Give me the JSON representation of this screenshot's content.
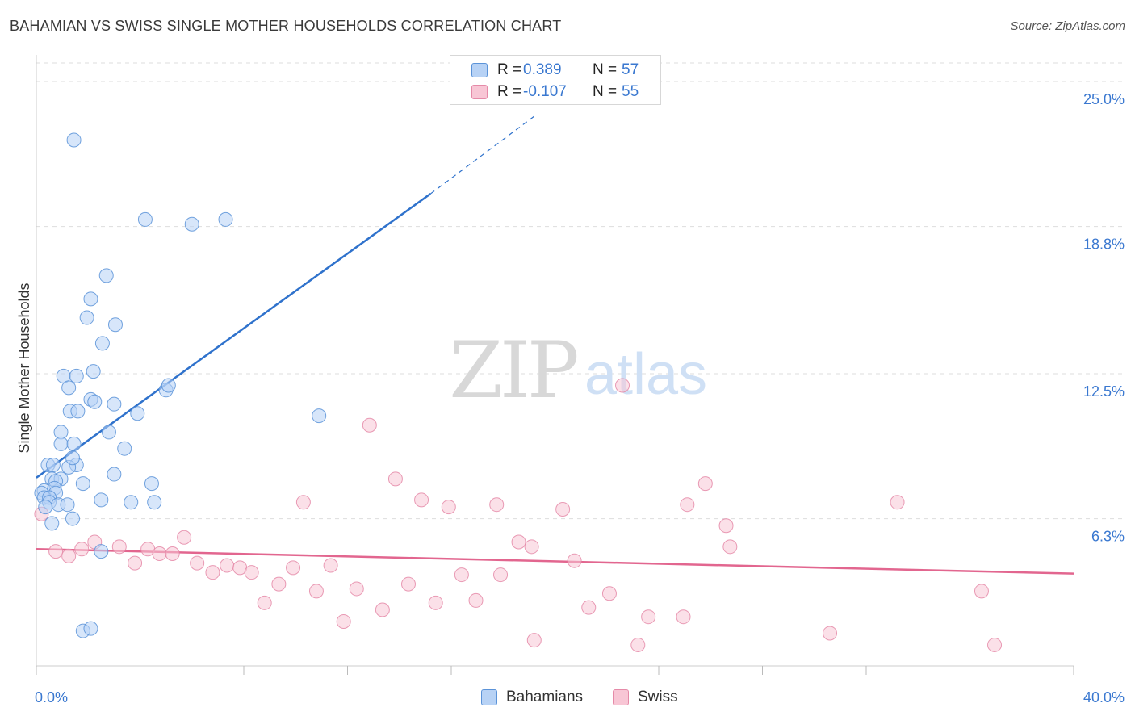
{
  "title": "BAHAMIAN VS SWISS SINGLE MOTHER HOUSEHOLDS CORRELATION CHART",
  "source": "Source: ZipAtlas.com",
  "watermark": {
    "zip": "ZIP",
    "atlas": "atlas"
  },
  "legend": {
    "r_label": "R =",
    "n_label": "N =",
    "bahamians": {
      "r": "0.389",
      "n": "57"
    },
    "swiss": {
      "r": "-0.107",
      "n": "55"
    }
  },
  "bottom_legend": {
    "bahamians": "Bahamians",
    "swiss": "Swiss"
  },
  "colors": {
    "bahamians_fill": "#b7d2f5",
    "bahamians_stroke": "#5b93d8",
    "bahamians_line": "#2f72cc",
    "swiss_fill": "#f8c6d5",
    "swiss_stroke": "#e58aa8",
    "swiss_line": "#e2668f",
    "axis_text": "#3a78d0",
    "grid": "#dddddd"
  },
  "chart_data": {
    "type": "scatter",
    "title": "BAHAMIAN VS SWISS SINGLE MOTHER HOUSEHOLDS CORRELATION CHART",
    "ylabel": "Single Mother Households",
    "xlabel": "",
    "xlim": [
      0,
      40
    ],
    "ylim": [
      0,
      25.9
    ],
    "x_tick_labels": [
      "0.0%",
      "40.0%"
    ],
    "y_ticks": [
      6.3,
      12.5,
      18.8,
      25.0
    ],
    "y_tick_labels": [
      "6.3%",
      "12.5%",
      "18.8%",
      "25.0%"
    ],
    "grid": true,
    "series": [
      {
        "name": "Bahamians",
        "r": 0.389,
        "n": 57,
        "points": [
          [
            1.45,
            22.5
          ],
          [
            4.2,
            19.1
          ],
          [
            6.0,
            18.9
          ],
          [
            7.3,
            19.1
          ],
          [
            2.7,
            16.7
          ],
          [
            2.1,
            15.7
          ],
          [
            1.95,
            14.9
          ],
          [
            3.05,
            14.6
          ],
          [
            2.55,
            13.8
          ],
          [
            1.05,
            12.4
          ],
          [
            1.55,
            12.4
          ],
          [
            2.2,
            12.6
          ],
          [
            1.25,
            11.9
          ],
          [
            5.0,
            11.8
          ],
          [
            5.1,
            12.0
          ],
          [
            2.1,
            11.4
          ],
          [
            2.25,
            11.3
          ],
          [
            3.0,
            11.2
          ],
          [
            1.3,
            10.9
          ],
          [
            1.6,
            10.9
          ],
          [
            3.9,
            10.8
          ],
          [
            10.9,
            10.7
          ],
          [
            0.95,
            10.0
          ],
          [
            2.8,
            10.0
          ],
          [
            0.95,
            9.5
          ],
          [
            1.45,
            9.5
          ],
          [
            3.4,
            9.3
          ],
          [
            0.45,
            8.6
          ],
          [
            0.65,
            8.6
          ],
          [
            1.55,
            8.6
          ],
          [
            1.25,
            8.5
          ],
          [
            3.0,
            8.2
          ],
          [
            1.4,
            8.9
          ],
          [
            0.6,
            8.0
          ],
          [
            0.95,
            8.0
          ],
          [
            0.75,
            7.9
          ],
          [
            1.8,
            7.8
          ],
          [
            4.45,
            7.8
          ],
          [
            0.3,
            7.5
          ],
          [
            0.7,
            7.6
          ],
          [
            0.75,
            7.4
          ],
          [
            0.2,
            7.4
          ],
          [
            0.3,
            7.2
          ],
          [
            0.5,
            7.2
          ],
          [
            0.5,
            7.0
          ],
          [
            0.85,
            6.9
          ],
          [
            1.2,
            6.9
          ],
          [
            2.5,
            7.1
          ],
          [
            3.65,
            7.0
          ],
          [
            4.55,
            7.0
          ],
          [
            0.35,
            6.8
          ],
          [
            0.6,
            6.1
          ],
          [
            1.4,
            6.3
          ],
          [
            2.5,
            4.9
          ],
          [
            1.8,
            1.5
          ],
          [
            2.1,
            1.6
          ]
        ],
        "trend": {
          "x0": 0.0,
          "y0": 8.05,
          "x1": 15.2,
          "y1": 20.2,
          "dashed_to_x": 19.3,
          "dashed_to_y": 23.6
        }
      },
      {
        "name": "Swiss",
        "r": -0.107,
        "n": 55,
        "points": [
          [
            0.2,
            6.5
          ],
          [
            0.75,
            4.9
          ],
          [
            1.25,
            4.7
          ],
          [
            1.75,
            5.0
          ],
          [
            2.25,
            5.3
          ],
          [
            3.2,
            5.1
          ],
          [
            3.8,
            4.4
          ],
          [
            4.3,
            5.0
          ],
          [
            4.75,
            4.8
          ],
          [
            5.25,
            4.8
          ],
          [
            5.7,
            5.5
          ],
          [
            6.2,
            4.4
          ],
          [
            6.8,
            4.0
          ],
          [
            7.35,
            4.3
          ],
          [
            7.85,
            4.2
          ],
          [
            8.3,
            4.0
          ],
          [
            8.8,
            2.7
          ],
          [
            9.35,
            3.5
          ],
          [
            9.9,
            4.2
          ],
          [
            10.3,
            7.0
          ],
          [
            10.8,
            3.2
          ],
          [
            11.35,
            4.3
          ],
          [
            11.85,
            1.9
          ],
          [
            12.35,
            3.3
          ],
          [
            12.85,
            10.3
          ],
          [
            13.35,
            2.4
          ],
          [
            13.85,
            8.0
          ],
          [
            14.35,
            3.5
          ],
          [
            14.85,
            7.1
          ],
          [
            15.4,
            2.7
          ],
          [
            15.9,
            6.8
          ],
          [
            16.4,
            3.9
          ],
          [
            16.95,
            2.8
          ],
          [
            17.75,
            6.9
          ],
          [
            17.9,
            3.9
          ],
          [
            18.6,
            5.3
          ],
          [
            19.1,
            5.1
          ],
          [
            19.2,
            1.1
          ],
          [
            20.3,
            6.7
          ],
          [
            20.75,
            4.5
          ],
          [
            21.3,
            2.5
          ],
          [
            22.1,
            3.1
          ],
          [
            22.6,
            12.0
          ],
          [
            23.2,
            0.9
          ],
          [
            23.6,
            2.1
          ],
          [
            25.1,
            6.9
          ],
          [
            24.95,
            2.1
          ],
          [
            25.8,
            7.8
          ],
          [
            26.6,
            6.0
          ],
          [
            26.75,
            5.1
          ],
          [
            30.6,
            1.4
          ],
          [
            33.2,
            7.0
          ],
          [
            36.45,
            3.2
          ],
          [
            36.95,
            0.9
          ]
        ],
        "trend": {
          "x0": 0.0,
          "y0": 5.0,
          "x1": 40.0,
          "y1": 3.95
        }
      }
    ]
  }
}
